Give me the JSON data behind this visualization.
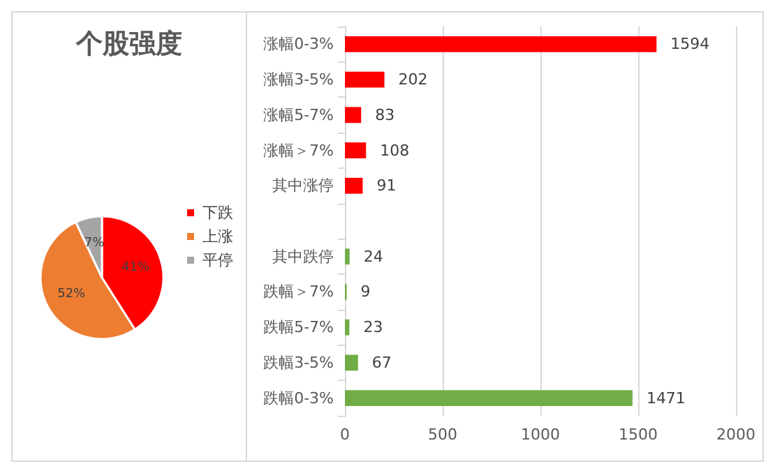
{
  "chart_data": [
    {
      "type": "pie",
      "title": "个股强度",
      "categories": [
        "下跌",
        "上涨",
        "平停"
      ],
      "values": [
        41,
        52,
        7
      ],
      "colors": [
        "#ff0000",
        "#ed7d31",
        "#a5a5a5"
      ],
      "value_labels": [
        "41%",
        "52%",
        "7%"
      ],
      "legend": "right"
    },
    {
      "type": "bar",
      "orientation": "horizontal",
      "categories": [
        "涨幅0-3%",
        "涨幅3-5%",
        "涨幅5-7%",
        "涨幅＞7%",
        "其中涨停",
        null,
        "其中跌停",
        "跌幅＞7%",
        "跌幅5-7%",
        "跌幅3-5%",
        "跌幅0-3%"
      ],
      "values": [
        1594,
        202,
        83,
        108,
        91,
        null,
        24,
        9,
        23,
        67,
        1471
      ],
      "colors": [
        "#ff0000",
        "#ff0000",
        "#ff0000",
        "#ff0000",
        "#ff0000",
        "#ff0000",
        "#70ad47",
        "#70ad47",
        "#70ad47",
        "#70ad47",
        "#70ad47"
      ],
      "xlim": [
        0,
        2000
      ],
      "xticks": [
        0,
        500,
        1000,
        1500,
        2000
      ],
      "grid": "x",
      "data_labels": true
    }
  ]
}
